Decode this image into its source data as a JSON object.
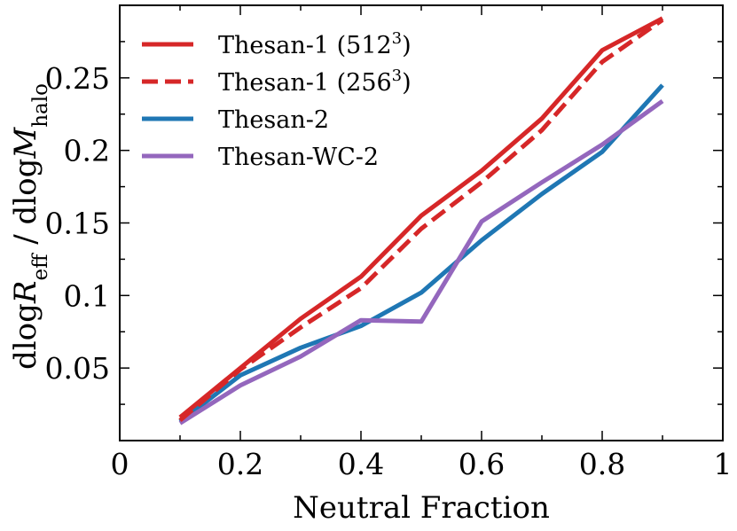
{
  "chart_data": {
    "type": "line",
    "title": "",
    "xlabel": "Neutral Fraction",
    "ylabel": {
      "prefix": "dlog",
      "r": "R",
      "r_sub": "eff",
      "sep": " / dlog",
      "m": "M",
      "m_sub": "halo"
    },
    "xlim": [
      0,
      1
    ],
    "ylim": [
      0,
      0.3
    ],
    "x_ticks": [
      {
        "value": 0,
        "label": "0"
      },
      {
        "value": 0.2,
        "label": "0.2"
      },
      {
        "value": 0.4,
        "label": "0.4"
      },
      {
        "value": 0.6,
        "label": "0.6"
      },
      {
        "value": 0.8,
        "label": "0.8"
      },
      {
        "value": 1,
        "label": "1"
      }
    ],
    "y_ticks": [
      {
        "value": 0.05,
        "label": "0.05"
      },
      {
        "value": 0.1,
        "label": "0.1"
      },
      {
        "value": 0.15,
        "label": "0.15"
      },
      {
        "value": 0.2,
        "label": "0.2"
      },
      {
        "value": 0.25,
        "label": "0.25"
      }
    ],
    "x": [
      0.1,
      0.2,
      0.3,
      0.4,
      0.5,
      0.6,
      0.7,
      0.8,
      0.9
    ],
    "legend_position": "top-left",
    "series": [
      {
        "name": "Thesan-1 (512",
        "name_sup": "3",
        "name_suffix": ")",
        "color": "#d62728",
        "dashed": false,
        "values": [
          0.016,
          0.05,
          0.084,
          0.113,
          0.155,
          0.186,
          0.222,
          0.269,
          0.291
        ]
      },
      {
        "name": "Thesan-1 (256",
        "name_sup": "3",
        "name_suffix": ")",
        "color": "#d62728",
        "dashed": true,
        "values": [
          0.014,
          0.049,
          0.078,
          0.105,
          0.146,
          0.178,
          0.214,
          0.261,
          0.29
        ]
      },
      {
        "name": "Thesan-2",
        "name_sup": "",
        "name_suffix": "",
        "color": "#1f77b4",
        "dashed": false,
        "values": [
          0.013,
          0.045,
          0.064,
          0.079,
          0.102,
          0.138,
          0.17,
          0.199,
          0.245
        ]
      },
      {
        "name": "Thesan-WC-2",
        "name_sup": "",
        "name_suffix": "",
        "color": "#9467bd",
        "dashed": false,
        "values": [
          0.012,
          0.038,
          0.058,
          0.083,
          0.082,
          0.151,
          0.178,
          0.204,
          0.234
        ]
      }
    ]
  }
}
